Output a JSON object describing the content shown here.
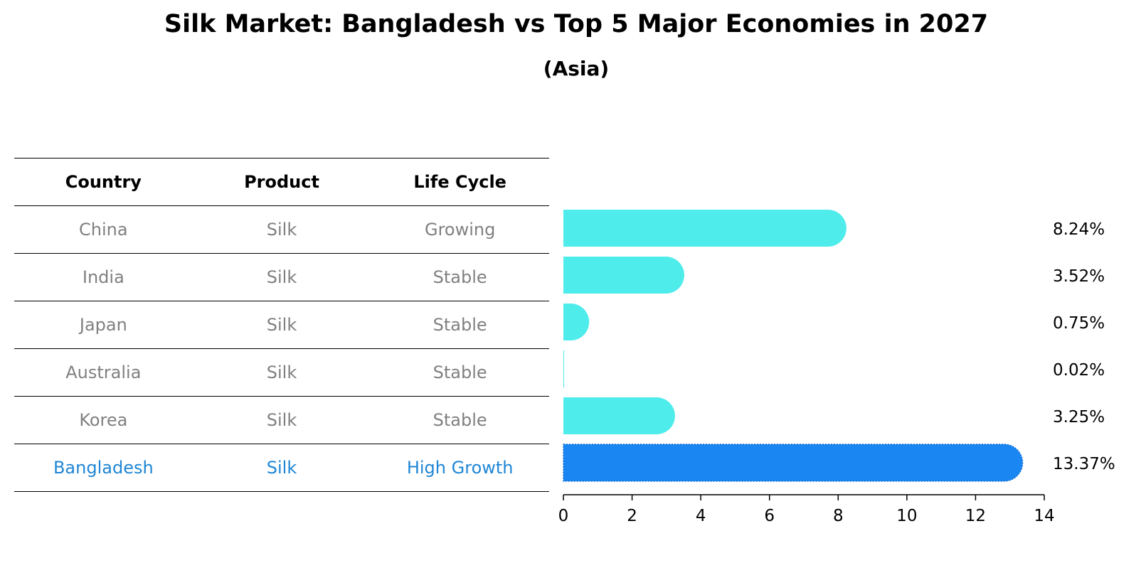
{
  "title": "Silk Market: Bangladesh vs Top 5 Major Economies in 2027",
  "subtitle": "(Asia)",
  "table": {
    "headers": [
      "Country",
      "Product",
      "Life Cycle"
    ],
    "rows": [
      {
        "country": "China",
        "product": "Silk",
        "life_cycle": "Growing",
        "highlight": false
      },
      {
        "country": "India",
        "product": "Silk",
        "life_cycle": "Stable",
        "highlight": false
      },
      {
        "country": "Japan",
        "product": "Silk",
        "life_cycle": "Stable",
        "highlight": false
      },
      {
        "country": "Australia",
        "product": "Silk",
        "life_cycle": "Stable",
        "highlight": false
      },
      {
        "country": "Korea",
        "product": "Silk",
        "life_cycle": "Stable",
        "highlight": false
      },
      {
        "country": "Bangladesh",
        "product": "Silk",
        "life_cycle": "High Growth",
        "highlight": true
      }
    ]
  },
  "colors": {
    "bar": "#4eeceb",
    "highlight_bar": "#1a86f2",
    "highlight_text": "#1f86d6",
    "muted_text": "#808080"
  },
  "chart_data": {
    "type": "bar",
    "orientation": "horizontal",
    "title": "Silk Market: Bangladesh vs Top 5 Major Economies in 2027",
    "subtitle": "(Asia)",
    "categories": [
      "China",
      "India",
      "Japan",
      "Australia",
      "Korea",
      "Bangladesh"
    ],
    "values": [
      8.24,
      3.52,
      0.75,
      0.02,
      3.25,
      13.37
    ],
    "value_labels": [
      "8.24%",
      "3.52%",
      "0.75%",
      "0.02%",
      "3.25%",
      "13.37%"
    ],
    "highlight": "Bangladesh",
    "xlim": [
      0,
      14
    ],
    "xticks": [
      0,
      2,
      4,
      6,
      8,
      10,
      12,
      14
    ],
    "xlabel": "",
    "ylabel": "",
    "grid": false
  }
}
